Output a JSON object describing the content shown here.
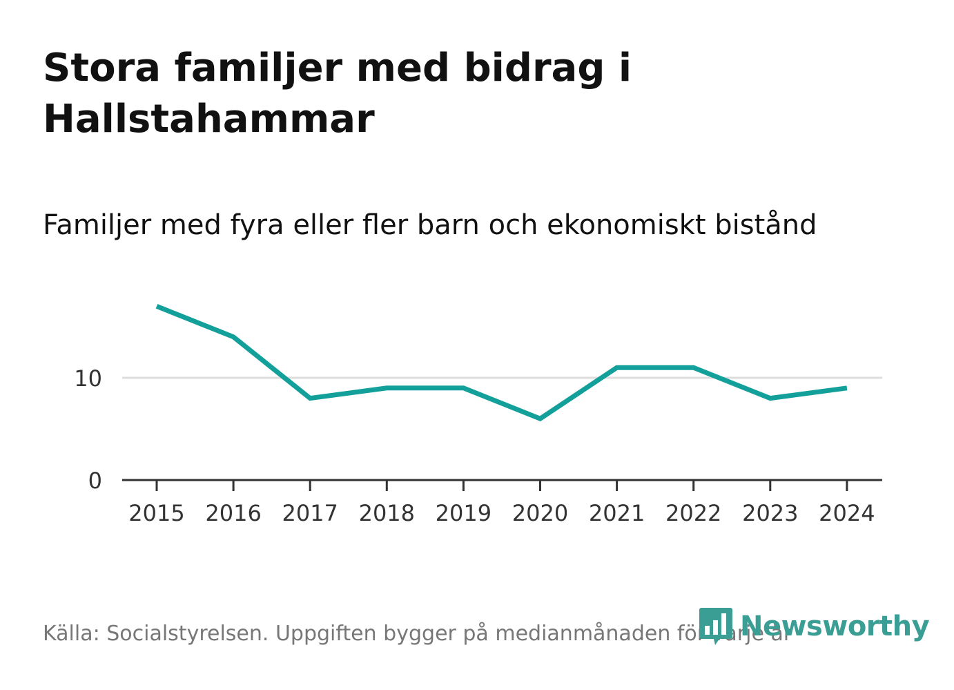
{
  "title": "Stora familjer med bidrag i Hallstahammar",
  "subtitle": "Familjer med fyra eller fler barn och ekonomiskt bistånd",
  "source": "Källa: Socialstyrelsen. Uppgiften bygger på medianmånaden för varje år",
  "brand": {
    "name": "Newsworthy",
    "icon": "bar-chart-logo-icon",
    "color": "#3a9e95"
  },
  "colors": {
    "line": "#14a09a",
    "grid": "#dddddd",
    "axis": "#333333"
  },
  "chart_data": {
    "type": "line",
    "title": "Familjer med fyra eller fler barn och ekonomiskt bistånd",
    "xlabel": "",
    "ylabel": "",
    "categories": [
      "2015",
      "2016",
      "2017",
      "2018",
      "2019",
      "2020",
      "2021",
      "2022",
      "2023",
      "2024"
    ],
    "series": [
      {
        "name": "Familjer med fyra eller fler barn och ekonomiskt bistånd",
        "values": [
          17,
          14,
          8,
          9,
          9,
          6,
          11,
          11,
          8,
          9
        ]
      }
    ],
    "y_ticks": [
      "0",
      "10"
    ],
    "ylim": [
      0,
      19
    ],
    "grid": true
  }
}
